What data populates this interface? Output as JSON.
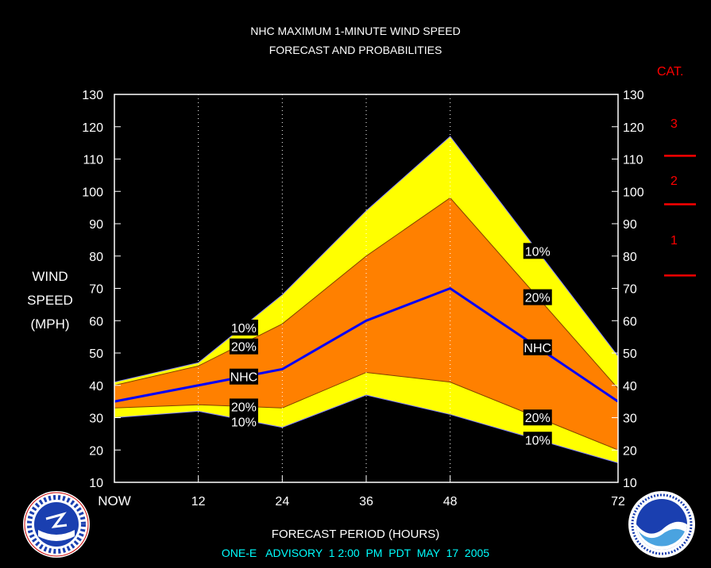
{
  "title_line1": "NHC MAXIMUM 1-MINUTE WIND SPEED",
  "title_line2": "FORECAST AND PROBABILITIES",
  "ylabel_line1": "WIND",
  "ylabel_line2": "SPEED",
  "ylabel_line3": "(MPH)",
  "xlabel": "FORECAST PERIOD (HOURS)",
  "advisory": "ONE-E   ADVISORY  1 2:00  PM  PDT  MAY  17  2005",
  "category_title": "CAT.",
  "categories": [
    "3",
    "2",
    "1"
  ],
  "colors": {
    "outer_band": "#ffff00",
    "inner_band": "#ff8000",
    "nhc_line": "#0000ff",
    "category": "#ff0000",
    "advisory": "#00ffff"
  },
  "chart_data": {
    "type": "area",
    "title": "NHC MAXIMUM 1-MINUTE WIND SPEED FORECAST AND PROBABILITIES",
    "xlabel": "FORECAST PERIOD (HOURS)",
    "ylabel": "WIND SPEED (MPH)",
    "xlim": [
      0,
      72
    ],
    "ylim": [
      10,
      130
    ],
    "y_ticks": [
      10,
      20,
      30,
      40,
      50,
      60,
      70,
      80,
      90,
      100,
      110,
      120,
      130
    ],
    "x_ticks": [
      0,
      12,
      24,
      36,
      48,
      72
    ],
    "x_tick_labels": [
      "NOW",
      "12",
      "24",
      "36",
      "48",
      "72"
    ],
    "x": [
      0,
      12,
      24,
      36,
      48,
      72
    ],
    "series": [
      {
        "name": "10%",
        "values": [
          41,
          47,
          68,
          94,
          117,
          49
        ]
      },
      {
        "name": "20%",
        "values": [
          40,
          46,
          59,
          80,
          98,
          39
        ]
      },
      {
        "name": "NHC",
        "values": [
          35,
          40,
          45,
          60,
          70,
          35
        ]
      },
      {
        "name": "20%",
        "values": [
          33,
          34,
          33,
          44,
          41,
          20
        ]
      },
      {
        "name": "10%",
        "values": [
          30,
          32,
          27,
          37,
          31,
          16
        ]
      }
    ],
    "category_thresholds": [
      74,
      96,
      111
    ]
  }
}
